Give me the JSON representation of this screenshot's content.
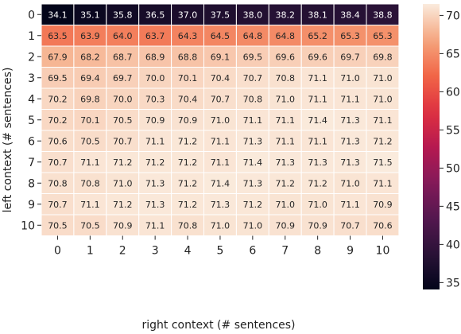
{
  "chart_data": {
    "type": "heatmap",
    "title": "",
    "xlabel": "right context (# sentences)",
    "ylabel": "left context (# sentences)",
    "x_categories": [
      "0",
      "1",
      "2",
      "3",
      "4",
      "5",
      "6",
      "7",
      "8",
      "9",
      "10"
    ],
    "y_categories": [
      "0",
      "1",
      "2",
      "3",
      "4",
      "5",
      "6",
      "7",
      "8",
      "9",
      "10"
    ],
    "values": [
      [
        34.1,
        35.1,
        35.8,
        36.5,
        37.0,
        37.5,
        38.0,
        38.2,
        38.1,
        38.4,
        38.8
      ],
      [
        63.5,
        63.9,
        64.0,
        63.7,
        64.3,
        64.5,
        64.8,
        64.8,
        65.2,
        65.3,
        65.3
      ],
      [
        67.9,
        68.2,
        68.7,
        68.9,
        68.8,
        69.1,
        69.5,
        69.6,
        69.6,
        69.7,
        69.8
      ],
      [
        69.5,
        69.4,
        69.7,
        70.0,
        70.1,
        70.4,
        70.7,
        70.8,
        71.1,
        71.0,
        71.0
      ],
      [
        70.2,
        69.8,
        70.0,
        70.3,
        70.4,
        70.7,
        70.8,
        71.0,
        71.1,
        71.1,
        71.0
      ],
      [
        70.2,
        70.1,
        70.5,
        70.9,
        70.9,
        71.0,
        71.1,
        71.1,
        71.4,
        71.3,
        71.1
      ],
      [
        70.6,
        70.5,
        70.7,
        71.1,
        71.2,
        71.1,
        71.3,
        71.1,
        71.1,
        71.3,
        71.2
      ],
      [
        70.7,
        71.1,
        71.2,
        71.2,
        71.2,
        71.1,
        71.4,
        71.3,
        71.3,
        71.3,
        71.5
      ],
      [
        70.8,
        70.8,
        71.0,
        71.3,
        71.2,
        71.4,
        71.3,
        71.2,
        71.2,
        71.0,
        71.1
      ],
      [
        70.7,
        71.1,
        71.2,
        71.3,
        71.2,
        71.3,
        71.2,
        71.0,
        71.0,
        71.1,
        70.9
      ],
      [
        70.5,
        70.5,
        70.9,
        71.1,
        70.8,
        71.0,
        71.0,
        70.9,
        70.9,
        70.7,
        70.6
      ]
    ],
    "colorbar": {
      "range": [
        34.1,
        71.5
      ],
      "ticks": [
        35,
        40,
        45,
        50,
        55,
        60,
        65,
        70
      ],
      "colormap": "rocket"
    }
  }
}
